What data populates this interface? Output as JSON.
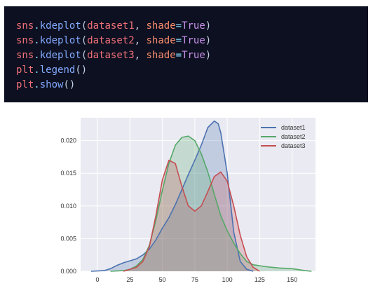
{
  "code": {
    "lines": [
      [
        {
          "t": "sns",
          "c": "obj"
        },
        {
          "t": ".",
          "c": "dot"
        },
        {
          "t": "kdeplot",
          "c": "fn"
        },
        {
          "t": "(",
          "c": "punc"
        },
        {
          "t": "dataset1",
          "c": "obj"
        },
        {
          "t": ", ",
          "c": "punc"
        },
        {
          "t": "shade",
          "c": "kw"
        },
        {
          "t": "=",
          "c": "eq"
        },
        {
          "t": "True",
          "c": "bool"
        },
        {
          "t": ")",
          "c": "punc"
        }
      ],
      [
        {
          "t": "sns",
          "c": "obj"
        },
        {
          "t": ".",
          "c": "dot"
        },
        {
          "t": "kdeplot",
          "c": "fn"
        },
        {
          "t": "(",
          "c": "punc"
        },
        {
          "t": "dataset2",
          "c": "obj"
        },
        {
          "t": ", ",
          "c": "punc"
        },
        {
          "t": "shade",
          "c": "kw"
        },
        {
          "t": "=",
          "c": "eq"
        },
        {
          "t": "True",
          "c": "bool"
        },
        {
          "t": ")",
          "c": "punc"
        }
      ],
      [
        {
          "t": "sns",
          "c": "obj"
        },
        {
          "t": ".",
          "c": "dot"
        },
        {
          "t": "kdeplot",
          "c": "fn"
        },
        {
          "t": "(",
          "c": "punc"
        },
        {
          "t": "dataset3",
          "c": "obj"
        },
        {
          "t": ", ",
          "c": "punc"
        },
        {
          "t": "shade",
          "c": "kw"
        },
        {
          "t": "=",
          "c": "eq"
        },
        {
          "t": "True",
          "c": "bool"
        },
        {
          "t": ")",
          "c": "punc"
        }
      ],
      [
        {
          "t": "plt",
          "c": "obj"
        },
        {
          "t": ".",
          "c": "dot"
        },
        {
          "t": "legend",
          "c": "fn"
        },
        {
          "t": "()",
          "c": "punc"
        }
      ],
      [
        {
          "t": "plt",
          "c": "obj"
        },
        {
          "t": ".",
          "c": "dot"
        },
        {
          "t": "show",
          "c": "fn"
        },
        {
          "t": "()",
          "c": "punc"
        }
      ]
    ]
  },
  "chart_data": {
    "type": "area",
    "title": "",
    "xlabel": "",
    "ylabel": "",
    "xlim": [
      -13,
      168
    ],
    "ylim": [
      0,
      0.0235
    ],
    "xticks": [
      0,
      25,
      50,
      75,
      100,
      125,
      150
    ],
    "yticks": [
      0.0,
      0.005,
      0.01,
      0.015,
      0.02
    ],
    "ytick_labels": [
      "0.000",
      "0.005",
      "0.010",
      "0.015",
      "0.020"
    ],
    "grid": true,
    "legend_position": "top-right",
    "background": "#eaeaf2",
    "series": [
      {
        "name": "dataset1",
        "color": "#4c72b0",
        "x": [
          -5,
          5,
          10,
          15,
          20,
          25,
          30,
          35,
          40,
          45,
          50,
          55,
          60,
          65,
          70,
          75,
          80,
          85,
          90,
          93,
          95,
          100,
          105,
          110,
          115,
          120
        ],
        "y": [
          0,
          0.0001,
          0.0004,
          0.0009,
          0.0013,
          0.0016,
          0.0019,
          0.0025,
          0.0034,
          0.0048,
          0.0066,
          0.0082,
          0.0102,
          0.0125,
          0.0148,
          0.017,
          0.0193,
          0.022,
          0.023,
          0.0226,
          0.0212,
          0.015,
          0.006,
          0.0015,
          0.0003,
          0
        ]
      },
      {
        "name": "dataset2",
        "color": "#55a868",
        "x": [
          10,
          20,
          25,
          30,
          35,
          40,
          45,
          50,
          55,
          60,
          65,
          70,
          75,
          80,
          85,
          90,
          95,
          100,
          105,
          110,
          115,
          120,
          130,
          140,
          150,
          160,
          165
        ],
        "y": [
          0,
          0.0001,
          0.0003,
          0.0008,
          0.0018,
          0.004,
          0.0078,
          0.0124,
          0.0165,
          0.0193,
          0.0205,
          0.0207,
          0.02,
          0.018,
          0.0152,
          0.0118,
          0.0085,
          0.0062,
          0.0043,
          0.0027,
          0.0015,
          0.001,
          0.0007,
          0.0005,
          0.0004,
          0.0001,
          0
        ]
      },
      {
        "name": "dataset3",
        "color": "#c44e52",
        "x": [
          20,
          30,
          35,
          40,
          45,
          50,
          55,
          60,
          65,
          70,
          75,
          80,
          85,
          90,
          95,
          100,
          105,
          110,
          115,
          120,
          125
        ],
        "y": [
          0,
          0.0006,
          0.0015,
          0.0038,
          0.0085,
          0.014,
          0.017,
          0.0165,
          0.013,
          0.01,
          0.0092,
          0.01,
          0.0122,
          0.0145,
          0.0152,
          0.0138,
          0.01,
          0.0055,
          0.0022,
          0.0006,
          0
        ]
      }
    ]
  }
}
